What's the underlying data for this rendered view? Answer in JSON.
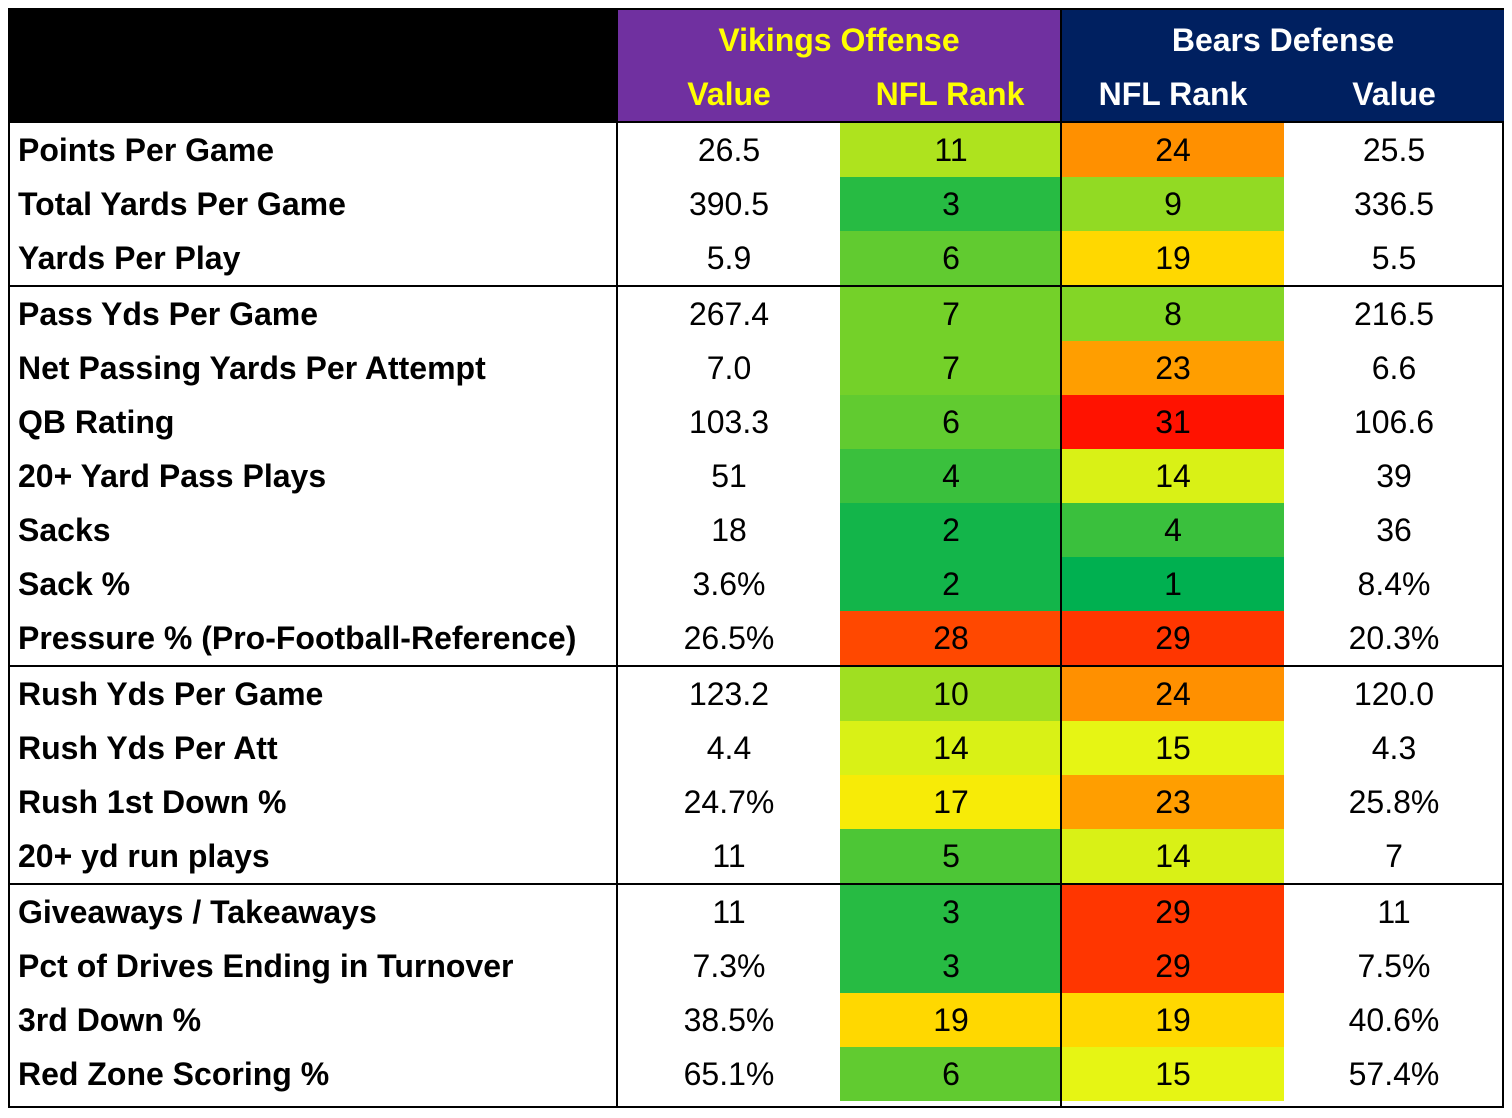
{
  "header": {
    "vikings_title": "Vikings Offense",
    "bears_title": "Bears Defense",
    "vikings_cols": [
      "Value",
      "NFL Rank"
    ],
    "bears_cols": [
      "NFL Rank",
      "Value"
    ]
  },
  "colors": {
    "vikings_bg": "#7030A0",
    "vikings_text": "#FFFF00",
    "bears_bg": "#002060",
    "bears_text": "#FFFFFF",
    "corner_bg": "#000000"
  },
  "groups": [
    {
      "rows": [
        {
          "label": "Points Per Game",
          "vik_value": "26.5",
          "vik_rank": "11",
          "bears_rank": "24",
          "bears_value": "25.5"
        },
        {
          "label": "Total Yards Per Game",
          "vik_value": "390.5",
          "vik_rank": "3",
          "bears_rank": "9",
          "bears_value": "336.5"
        },
        {
          "label": "Yards Per Play",
          "vik_value": "5.9",
          "vik_rank": "6",
          "bears_rank": "19",
          "bears_value": "5.5"
        }
      ]
    },
    {
      "rows": [
        {
          "label": "Pass Yds Per Game",
          "vik_value": "267.4",
          "vik_rank": "7",
          "bears_rank": "8",
          "bears_value": "216.5"
        },
        {
          "label": "Net Passing Yards Per Attempt",
          "vik_value": "7.0",
          "vik_rank": "7",
          "bears_rank": "23",
          "bears_value": "6.6"
        },
        {
          "label": "QB Rating",
          "vik_value": "103.3",
          "vik_rank": "6",
          "bears_rank": "31",
          "bears_value": "106.6"
        },
        {
          "label": "20+ Yard Pass Plays",
          "vik_value": "51",
          "vik_rank": "4",
          "bears_rank": "14",
          "bears_value": "39"
        },
        {
          "label": "Sacks",
          "vik_value": "18",
          "vik_rank": "2",
          "bears_rank": "4",
          "bears_value": "36"
        },
        {
          "label": "Sack %",
          "vik_value": "3.6%",
          "vik_rank": "2",
          "bears_rank": "1",
          "bears_value": "8.4%"
        },
        {
          "label": "Pressure % (Pro-Football-Reference)",
          "vik_value": "26.5%",
          "vik_rank": "28",
          "bears_rank": "29",
          "bears_value": "20.3%"
        }
      ]
    },
    {
      "rows": [
        {
          "label": "Rush Yds Per Game",
          "vik_value": "123.2",
          "vik_rank": "10",
          "bears_rank": "24",
          "bears_value": "120.0"
        },
        {
          "label": "Rush Yds Per Att",
          "vik_value": "4.4",
          "vik_rank": "14",
          "bears_rank": "15",
          "bears_value": "4.3"
        },
        {
          "label": "Rush 1st Down %",
          "vik_value": "24.7%",
          "vik_rank": "17",
          "bears_rank": "23",
          "bears_value": "25.8%"
        },
        {
          "label": "20+ yd run plays",
          "vik_value": "11",
          "vik_rank": "5",
          "bears_rank": "14",
          "bears_value": "7"
        }
      ]
    },
    {
      "rows": [
        {
          "label": "Giveaways / Takeaways",
          "vik_value": "11",
          "vik_rank": "3",
          "bears_rank": "29",
          "bears_value": "11"
        },
        {
          "label": "Pct of Drives Ending in Turnover",
          "vik_value": "7.3%",
          "vik_rank": "3",
          "bears_rank": "29",
          "bears_value": "7.5%"
        },
        {
          "label": "3rd Down %",
          "vik_value": "38.5%",
          "vik_rank": "19",
          "bears_rank": "19",
          "bears_value": "40.6%"
        },
        {
          "label": "Red Zone Scoring %",
          "vik_value": "65.1%",
          "vik_rank": "6",
          "bears_rank": "15",
          "bears_value": "57.4%"
        }
      ]
    }
  ]
}
